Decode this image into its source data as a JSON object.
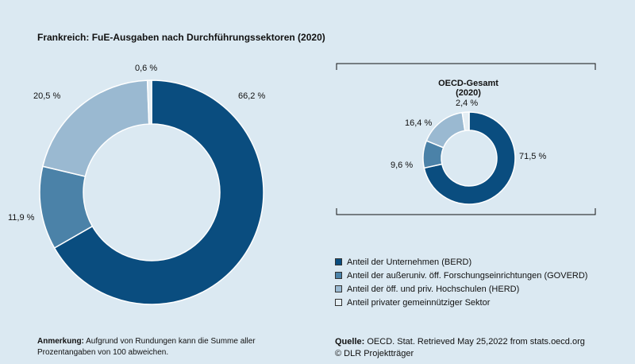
{
  "chart_data": [
    {
      "type": "pie",
      "title": "Frankreich: FuE-Ausgaben nach Durchführungssektoren (2020)",
      "categories": [
        "Anteil der Unternehmen (BERD)",
        "Anteil der außeruniv. öff. Forschungseinrichtungen (GOVERD)",
        "Anteil der öff. und priv. Hochschulen (HERD)",
        "Anteil privater gemeinnütziger Sektor"
      ],
      "values": [
        66.2,
        11.9,
        20.5,
        0.6
      ],
      "labels": [
        "66,2 %",
        "11,9 %",
        "20,5 %",
        "0,6 %"
      ]
    },
    {
      "type": "pie",
      "title": "OECD-Gesamt (2020)",
      "categories": [
        "Anteil der Unternehmen (BERD)",
        "Anteil der außeruniv. öff. Forschungseinrichtungen (GOVERD)",
        "Anteil der öff. und priv. Hochschulen (HERD)",
        "Anteil privater gemeinnütziger Sektor"
      ],
      "values": [
        71.5,
        9.6,
        16.4,
        2.4
      ],
      "labels": [
        "71,5 %",
        "9,6 %",
        "16,4 %",
        "2,4 %"
      ]
    }
  ],
  "colors": [
    "#0a4d7f",
    "#4b82a8",
    "#9ab9d1",
    "#e4eef4"
  ],
  "legend": [
    "Anteil der Unternehmen (BERD)",
    "Anteil der außeruniv. öff. Forschungseinrichtungen (GOVERD)",
    "Anteil der öff. und priv. Hochschulen (HERD)",
    "Anteil privater gemeinnütziger Sektor"
  ],
  "note": {
    "label": "Anmerkung:",
    "text": "Aufgrund von Rundungen kann die Summe aller Prozentangaben von 100 abweichen."
  },
  "source": {
    "label": "Quelle:",
    "text": "OECD. Stat. Retrieved May 25,2022 from stats.oecd.org",
    "copyright": "© DLR Projektträger"
  }
}
